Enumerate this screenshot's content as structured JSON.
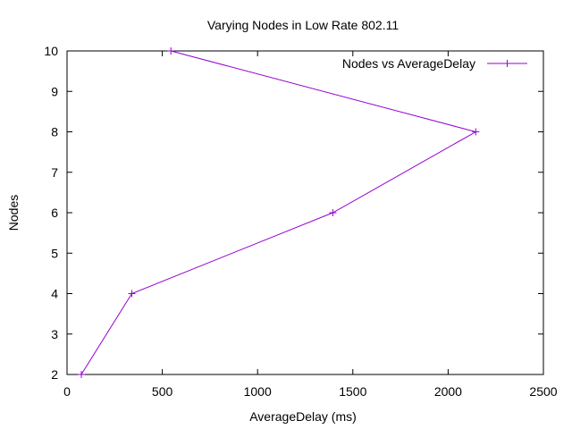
{
  "chart_data": {
    "type": "line",
    "title": "Varying Nodes in Low Rate 802.11",
    "xlabel": "AverageDelay (ms)",
    "ylabel": "Nodes",
    "xlim": [
      0,
      2500
    ],
    "ylim": [
      2,
      10
    ],
    "xticks": [
      0,
      500,
      1000,
      1500,
      2000,
      2500
    ],
    "yticks": [
      2,
      3,
      4,
      5,
      6,
      7,
      8,
      9,
      10
    ],
    "grid": false,
    "legend_position": "top-right",
    "series": [
      {
        "name": "Nodes vs AverageDelay",
        "color": "#9400d3",
        "marker": "plus",
        "x": [
          75,
          340,
          1395,
          2145,
          545
        ],
        "y": [
          2,
          4,
          6,
          8,
          10
        ]
      }
    ]
  }
}
